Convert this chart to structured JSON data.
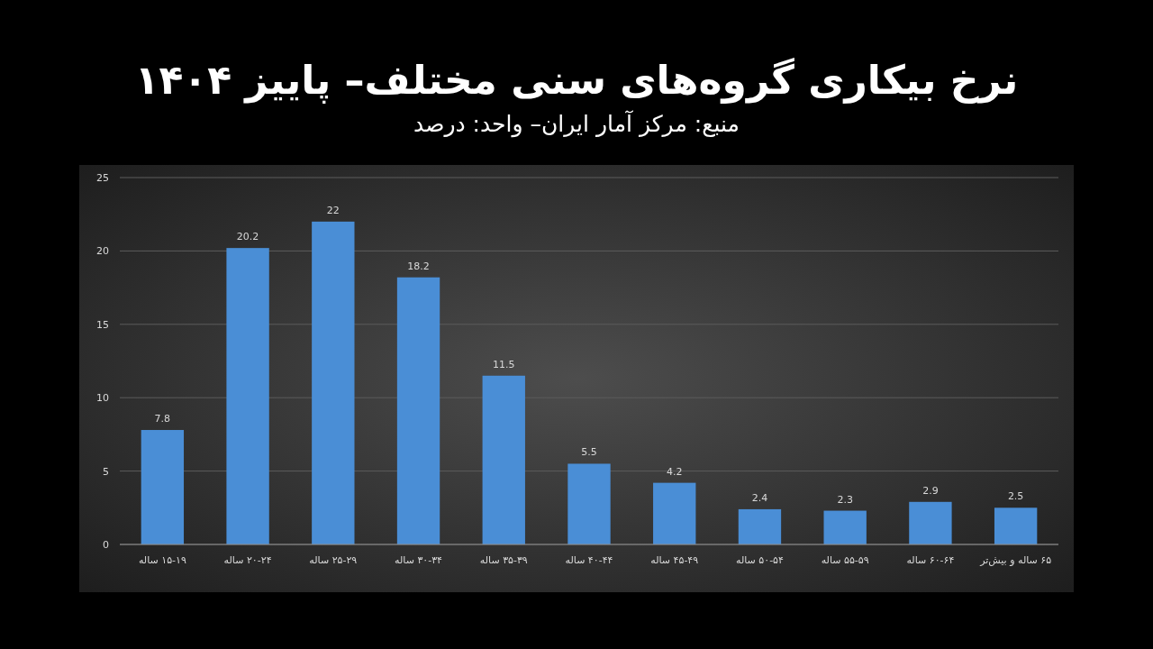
{
  "chart_data": {
    "type": "bar",
    "title": "نرخ بیکاری گروه‌های سنی مختلف– پاییز ۱۴۰۴",
    "subtitle": "منبع: مرکز آمار ایران– واحد: درصد",
    "categories": [
      "۱۵-۱۹ ساله",
      "۲۰-۲۴ ساله",
      "۲۵-۲۹ ساله",
      "۳۰-۳۴ ساله",
      "۳۵-۳۹ ساله",
      "۴۰-۴۴ ساله",
      "۴۵-۴۹ ساله",
      "۵۰-۵۴ ساله",
      "۵۵-۵۹ ساله",
      "۶۰-۶۴ ساله",
      "۶۵ ساله و بیش‌تر"
    ],
    "values": [
      7.8,
      20.2,
      22,
      18.2,
      11.5,
      5.5,
      4.2,
      2.4,
      2.3,
      2.9,
      2.5
    ],
    "color": "#4a8ed6",
    "ylim": [
      0,
      25
    ],
    "yticks": [
      0,
      5,
      10,
      15,
      20,
      25
    ],
    "grid": "y",
    "data_labels": true
  }
}
